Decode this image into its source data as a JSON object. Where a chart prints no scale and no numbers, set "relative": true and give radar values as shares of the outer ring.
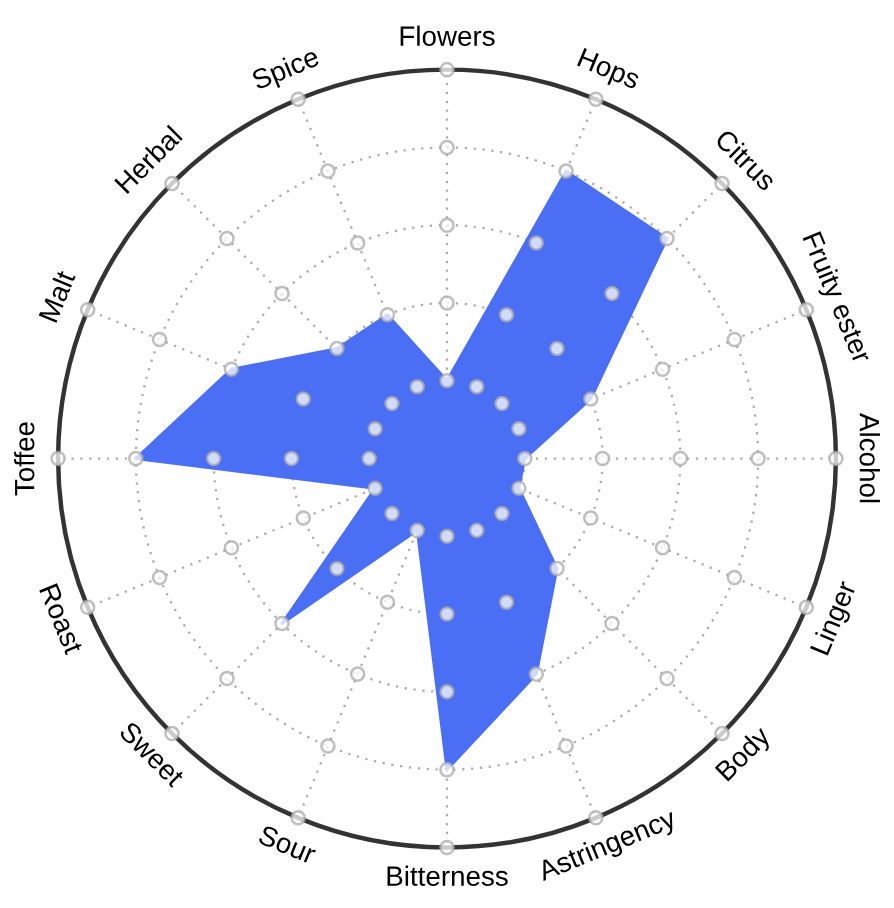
{
  "chart_data": {
    "type": "radar",
    "relative": true,
    "grid": true,
    "categories": [
      "Flowers",
      "Hops",
      "Citrus",
      "Fruity ester",
      "Alcohol",
      "Linger",
      "Body",
      "Astringency",
      "Bitterness",
      "Sour",
      "Sweet",
      "Roast",
      "Toffee",
      "Malt",
      "Herbal",
      "Spice"
    ],
    "series": [
      {
        "color": "#4a6ff5",
        "values": [
          0.2,
          0.8,
          0.8,
          0.4,
          0.2,
          0.2,
          0.4,
          0.6,
          0.8,
          0.2,
          0.6,
          0.2,
          0.8,
          0.6,
          0.4,
          0.4
        ]
      }
    ]
  }
}
